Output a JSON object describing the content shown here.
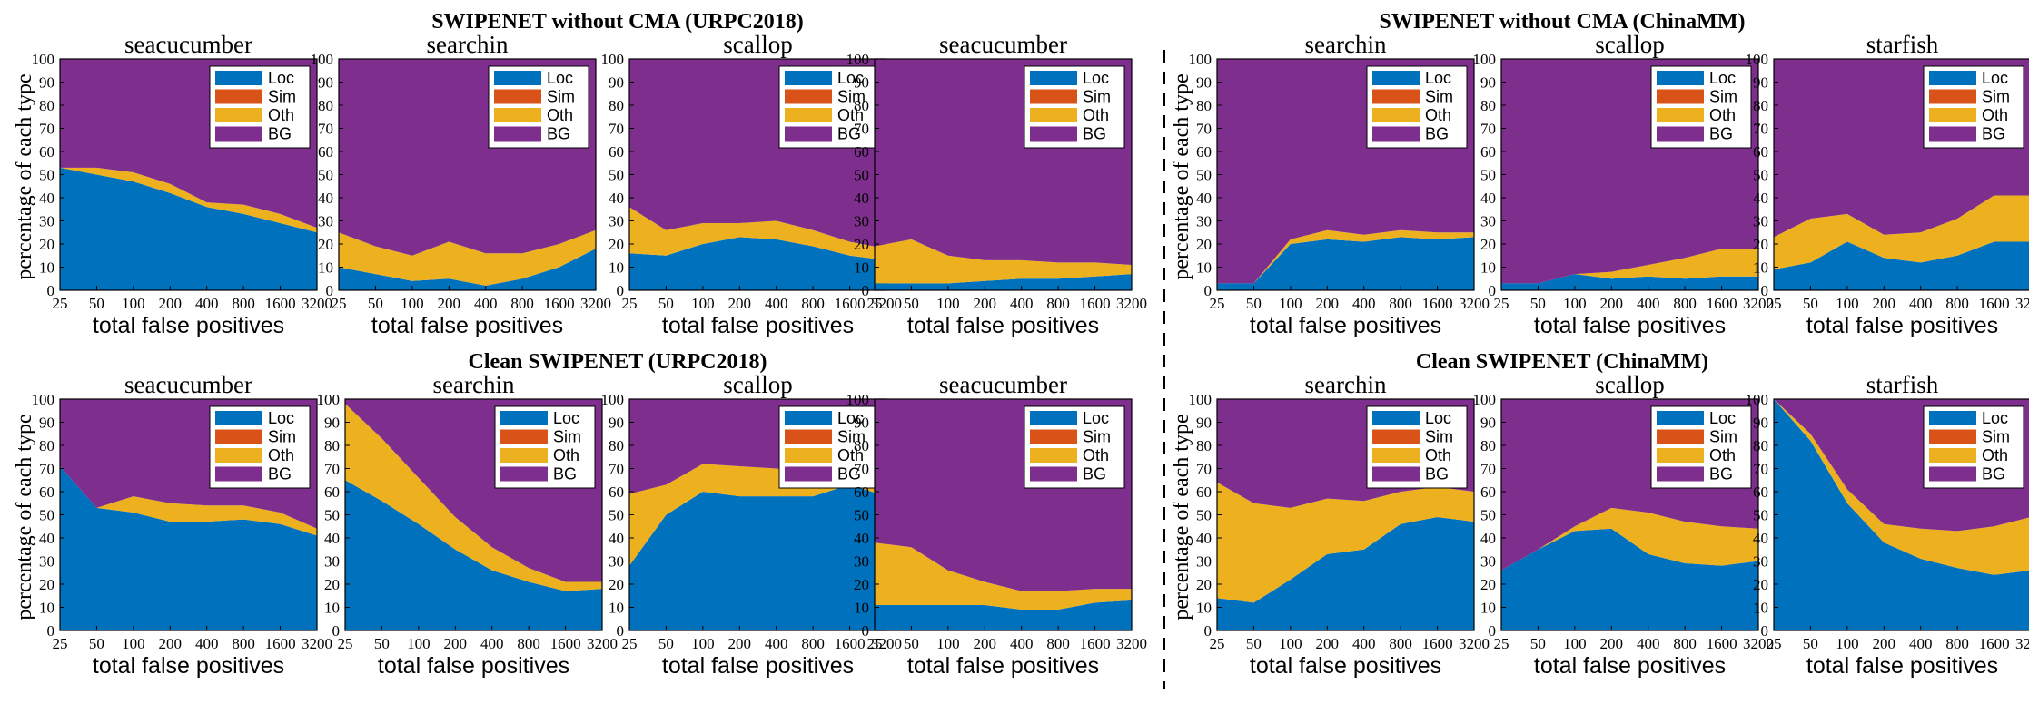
{
  "figure": {
    "sections": [
      {
        "title": "SWIPENET without CMA (URPC2018)"
      },
      {
        "title": "SWIPENET without CMA (ChinaMM)"
      },
      {
        "title": "Clean SWIPENET (URPC2018)"
      },
      {
        "title": "Clean SWIPENET (ChinaMM)"
      }
    ],
    "ylabel": "percentage of each type",
    "xlabel": "total false positives",
    "xticks": [
      "25",
      "50",
      "100",
      "200",
      "400",
      "800",
      "1600",
      "3200"
    ],
    "yticks": [
      0,
      10,
      20,
      30,
      40,
      50,
      60,
      70,
      80,
      90,
      100
    ],
    "legend": [
      "Loc",
      "Sim",
      "Oth",
      "BG"
    ],
    "colors": {
      "Loc": "#0072BD",
      "Sim": "#D95319",
      "Oth": "#EDB120",
      "BG": "#7E2F8E"
    }
  },
  "chart_data": [
    {
      "type": "area",
      "section": "SWIPENET without CMA (URPC2018)",
      "title": "seacucumber",
      "xlabel": "total false positives",
      "ylabel": "percentage of each type",
      "ylim": [
        0,
        100
      ],
      "x": [
        25,
        50,
        100,
        200,
        400,
        800,
        1600,
        3200
      ],
      "series": [
        {
          "name": "Loc",
          "values": [
            53,
            50,
            47,
            42,
            36,
            33,
            29,
            25
          ]
        },
        {
          "name": "Sim",
          "values": [
            0,
            0,
            0,
            0,
            0,
            0,
            0,
            0
          ]
        },
        {
          "name": "Oth",
          "values": [
            0,
            3,
            4,
            4,
            2,
            4,
            4,
            2
          ]
        },
        {
          "name": "BG",
          "values": [
            47,
            47,
            49,
            54,
            62,
            63,
            67,
            73
          ]
        }
      ]
    },
    {
      "type": "area",
      "section": "SWIPENET without CMA (URPC2018)",
      "title": "searchin",
      "xlabel": "total false positives",
      "ylabel": "",
      "ylim": [
        0,
        100
      ],
      "x": [
        25,
        50,
        100,
        200,
        400,
        800,
        1600,
        3200
      ],
      "series": [
        {
          "name": "Loc",
          "values": [
            10,
            7,
            4,
            5,
            2,
            5,
            10,
            18
          ]
        },
        {
          "name": "Sim",
          "values": [
            0,
            0,
            0,
            0,
            0,
            0,
            0,
            0
          ]
        },
        {
          "name": "Oth",
          "values": [
            15,
            12,
            11,
            16,
            14,
            11,
            10,
            8
          ]
        },
        {
          "name": "BG",
          "values": [
            75,
            81,
            85,
            79,
            84,
            84,
            80,
            74
          ]
        }
      ]
    },
    {
      "type": "area",
      "section": "SWIPENET without CMA (URPC2018)",
      "title": "scallop",
      "xlabel": "total false positives",
      "ylabel": "",
      "ylim": [
        0,
        100
      ],
      "x": [
        25,
        50,
        100,
        200,
        400,
        800,
        1600,
        3200
      ],
      "series": [
        {
          "name": "Loc",
          "values": [
            16,
            15,
            20,
            23,
            22,
            19,
            15,
            13
          ]
        },
        {
          "name": "Sim",
          "values": [
            0,
            0,
            0,
            0,
            0,
            0,
            0,
            0
          ]
        },
        {
          "name": "Oth",
          "values": [
            20,
            11,
            9,
            6,
            8,
            7,
            6,
            5
          ]
        },
        {
          "name": "BG",
          "values": [
            64,
            74,
            71,
            71,
            70,
            74,
            79,
            82
          ]
        }
      ]
    },
    {
      "type": "area",
      "section": "SWIPENET without CMA (URPC2018)",
      "title": "seacucumber",
      "xlabel": "total false positives",
      "ylabel": "",
      "ylim": [
        0,
        100
      ],
      "x": [
        25,
        50,
        100,
        200,
        400,
        800,
        1600,
        3200
      ],
      "series": [
        {
          "name": "Loc",
          "values": [
            3,
            3,
            3,
            4,
            5,
            5,
            6,
            7
          ]
        },
        {
          "name": "Sim",
          "values": [
            0,
            0,
            0,
            0,
            0,
            0,
            0,
            0
          ]
        },
        {
          "name": "Oth",
          "values": [
            16,
            19,
            12,
            9,
            8,
            7,
            6,
            4
          ]
        },
        {
          "name": "BG",
          "values": [
            81,
            78,
            85,
            87,
            87,
            88,
            88,
            89
          ]
        }
      ]
    },
    {
      "type": "area",
      "section": "SWIPENET without CMA (ChinaMM)",
      "title": "searchin",
      "xlabel": "total false positives",
      "ylabel": "percentage of each type",
      "ylim": [
        0,
        100
      ],
      "x": [
        25,
        50,
        100,
        200,
        400,
        800,
        1600,
        3200
      ],
      "series": [
        {
          "name": "Loc",
          "values": [
            3,
            3,
            20,
            22,
            21,
            23,
            22,
            23
          ]
        },
        {
          "name": "Sim",
          "values": [
            0,
            0,
            0,
            0,
            0,
            0,
            0,
            0
          ]
        },
        {
          "name": "Oth",
          "values": [
            0,
            0,
            2,
            4,
            3,
            3,
            3,
            2
          ]
        },
        {
          "name": "BG",
          "values": [
            97,
            97,
            78,
            74,
            76,
            74,
            75,
            75
          ]
        }
      ]
    },
    {
      "type": "area",
      "section": "SWIPENET without CMA (ChinaMM)",
      "title": "scallop",
      "xlabel": "total false positives",
      "ylabel": "",
      "ylim": [
        0,
        100
      ],
      "x": [
        25,
        50,
        100,
        200,
        400,
        800,
        1600,
        3200
      ],
      "series": [
        {
          "name": "Loc",
          "values": [
            3,
            3,
            7,
            5,
            6,
            5,
            6,
            6
          ]
        },
        {
          "name": "Sim",
          "values": [
            0,
            0,
            0,
            0,
            0,
            0,
            0,
            0
          ]
        },
        {
          "name": "Oth",
          "values": [
            0,
            0,
            0,
            3,
            5,
            9,
            12,
            12
          ]
        },
        {
          "name": "BG",
          "values": [
            97,
            97,
            93,
            92,
            89,
            86,
            82,
            82
          ]
        }
      ]
    },
    {
      "type": "area",
      "section": "SWIPENET without CMA (ChinaMM)",
      "title": "starfish",
      "xlabel": "total false positives",
      "ylabel": "",
      "ylim": [
        0,
        100
      ],
      "x": [
        25,
        50,
        100,
        200,
        400,
        800,
        1600,
        3200
      ],
      "series": [
        {
          "name": "Loc",
          "values": [
            9,
            12,
            21,
            14,
            12,
            15,
            21,
            21
          ]
        },
        {
          "name": "Sim",
          "values": [
            0,
            0,
            0,
            0,
            0,
            0,
            0,
            0
          ]
        },
        {
          "name": "Oth",
          "values": [
            14,
            19,
            12,
            10,
            13,
            16,
            20,
            20
          ]
        },
        {
          "name": "BG",
          "values": [
            77,
            69,
            67,
            76,
            75,
            69,
            59,
            59
          ]
        }
      ]
    },
    {
      "type": "area",
      "section": "Clean SWIPENET (URPC2018)",
      "title": "seacucumber",
      "xlabel": "total false positives",
      "ylabel": "percentage of each type",
      "ylim": [
        0,
        100
      ],
      "x": [
        25,
        50,
        100,
        200,
        400,
        800,
        1600,
        3200
      ],
      "series": [
        {
          "name": "Loc",
          "values": [
            71,
            53,
            51,
            47,
            47,
            48,
            46,
            41
          ]
        },
        {
          "name": "Sim",
          "values": [
            0,
            0,
            0,
            0,
            0,
            0,
            0,
            0
          ]
        },
        {
          "name": "Oth",
          "values": [
            0,
            0,
            7,
            8,
            7,
            6,
            5,
            3
          ]
        },
        {
          "name": "BG",
          "values": [
            29,
            47,
            42,
            45,
            46,
            46,
            49,
            56
          ]
        }
      ]
    },
    {
      "type": "area",
      "section": "Clean SWIPENET (URPC2018)",
      "title": "searchin",
      "xlabel": "total false positives",
      "ylabel": "",
      "ylim": [
        0,
        100
      ],
      "x": [
        25,
        50,
        100,
        200,
        400,
        800,
        1600,
        3200
      ],
      "series": [
        {
          "name": "Loc",
          "values": [
            65,
            56,
            46,
            35,
            26,
            21,
            17,
            18
          ]
        },
        {
          "name": "Sim",
          "values": [
            0,
            0,
            0,
            0,
            0,
            0,
            0,
            0
          ]
        },
        {
          "name": "Oth",
          "values": [
            33,
            27,
            20,
            14,
            10,
            6,
            4,
            3
          ]
        },
        {
          "name": "BG",
          "values": [
            2,
            17,
            34,
            51,
            64,
            73,
            79,
            79
          ]
        }
      ]
    },
    {
      "type": "area",
      "section": "Clean SWIPENET (URPC2018)",
      "title": "scallop",
      "xlabel": "total false positives",
      "ylabel": "",
      "ylim": [
        0,
        100
      ],
      "x": [
        25,
        50,
        100,
        200,
        400,
        800,
        1600,
        3200
      ],
      "series": [
        {
          "name": "Loc",
          "values": [
            28,
            50,
            60,
            58,
            58,
            58,
            63,
            58
          ]
        },
        {
          "name": "Sim",
          "values": [
            0,
            0,
            0,
            0,
            0,
            0,
            0,
            0
          ]
        },
        {
          "name": "Oth",
          "values": [
            31,
            13,
            12,
            13,
            12,
            10,
            5,
            11
          ]
        },
        {
          "name": "BG",
          "values": [
            41,
            37,
            28,
            29,
            30,
            32,
            32,
            31
          ]
        }
      ]
    },
    {
      "type": "area",
      "section": "Clean SWIPENET (URPC2018)",
      "title": "seacucumber",
      "xlabel": "total false positives",
      "ylabel": "",
      "ylim": [
        0,
        100
      ],
      "x": [
        25,
        50,
        100,
        200,
        400,
        800,
        1600,
        3200
      ],
      "series": [
        {
          "name": "Loc",
          "values": [
            11,
            11,
            11,
            11,
            9,
            9,
            12,
            13
          ]
        },
        {
          "name": "Sim",
          "values": [
            0,
            0,
            0,
            0,
            0,
            0,
            0,
            0
          ]
        },
        {
          "name": "Oth",
          "values": [
            27,
            25,
            15,
            10,
            8,
            8,
            6,
            5
          ]
        },
        {
          "name": "BG",
          "values": [
            62,
            64,
            74,
            79,
            83,
            83,
            82,
            82
          ]
        }
      ]
    },
    {
      "type": "area",
      "section": "Clean SWIPENET (ChinaMM)",
      "title": "searchin",
      "xlabel": "total false positives",
      "ylabel": "percentage of each type",
      "ylim": [
        0,
        100
      ],
      "x": [
        25,
        50,
        100,
        200,
        400,
        800,
        1600,
        3200
      ],
      "series": [
        {
          "name": "Loc",
          "values": [
            14,
            12,
            22,
            33,
            35,
            46,
            49,
            47
          ]
        },
        {
          "name": "Sim",
          "values": [
            0,
            0,
            0,
            0,
            0,
            0,
            0,
            0
          ]
        },
        {
          "name": "Oth",
          "values": [
            50,
            43,
            31,
            24,
            21,
            14,
            13,
            13
          ]
        },
        {
          "name": "BG",
          "values": [
            36,
            45,
            47,
            43,
            44,
            40,
            38,
            40
          ]
        }
      ]
    },
    {
      "type": "area",
      "section": "Clean SWIPENET (ChinaMM)",
      "title": "scallop",
      "xlabel": "total false positives",
      "ylabel": "",
      "ylim": [
        0,
        100
      ],
      "x": [
        25,
        50,
        100,
        200,
        400,
        800,
        1600,
        3200
      ],
      "series": [
        {
          "name": "Loc",
          "values": [
            26,
            35,
            43,
            44,
            33,
            29,
            28,
            30
          ]
        },
        {
          "name": "Sim",
          "values": [
            0,
            0,
            0,
            0,
            0,
            0,
            0,
            0
          ]
        },
        {
          "name": "Oth",
          "values": [
            0,
            0,
            2,
            9,
            18,
            18,
            17,
            14
          ]
        },
        {
          "name": "BG",
          "values": [
            74,
            65,
            55,
            47,
            49,
            53,
            55,
            56
          ]
        }
      ]
    },
    {
      "type": "area",
      "section": "Clean SWIPENET (ChinaMM)",
      "title": "starfish",
      "xlabel": "total false positives",
      "ylabel": "",
      "ylim": [
        0,
        100
      ],
      "x": [
        25,
        50,
        100,
        200,
        400,
        800,
        1600,
        3200
      ],
      "series": [
        {
          "name": "Loc",
          "values": [
            100,
            82,
            55,
            38,
            31,
            27,
            24,
            26
          ]
        },
        {
          "name": "Sim",
          "values": [
            0,
            0,
            0,
            0,
            0,
            0,
            0,
            0
          ]
        },
        {
          "name": "Oth",
          "values": [
            0,
            3,
            6,
            8,
            13,
            16,
            21,
            23
          ]
        },
        {
          "name": "BG",
          "values": [
            0,
            15,
            39,
            54,
            56,
            57,
            55,
            51
          ]
        }
      ]
    }
  ]
}
